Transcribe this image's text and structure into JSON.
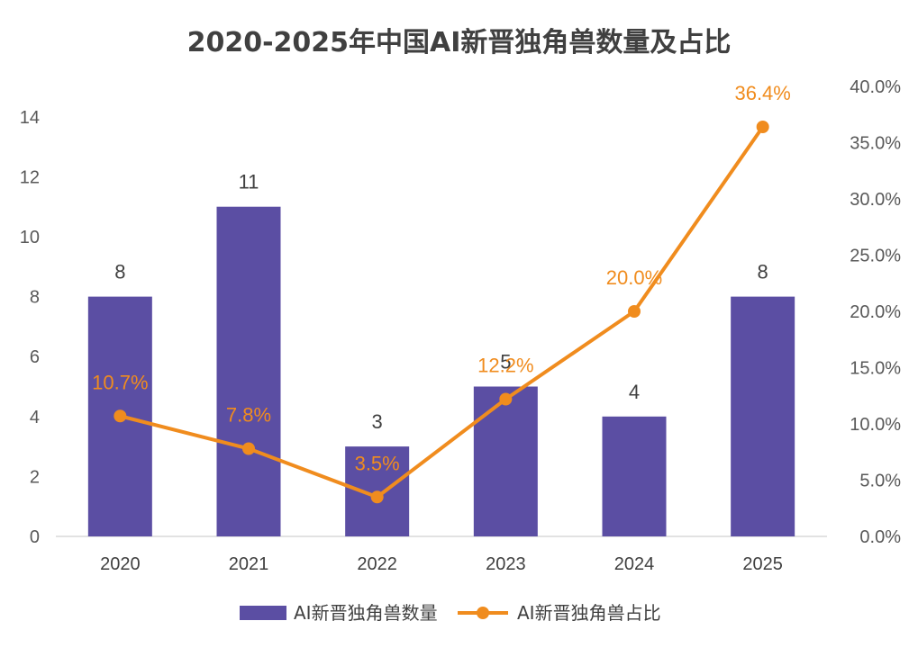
{
  "chart_data": {
    "type": "bar",
    "title": "2020-2025年中国AI新晋独角兽数量及占比",
    "categories": [
      "2020",
      "2021",
      "2022",
      "2023",
      "2024",
      "2025"
    ],
    "series": [
      {
        "name": "AI新晋独角兽数量",
        "type": "bar",
        "axis": "left",
        "values": [
          8,
          11,
          3,
          5,
          4,
          8
        ],
        "labels": [
          "8",
          "11",
          "3",
          "5",
          "4",
          "8"
        ],
        "color": "#5b4ea3"
      },
      {
        "name": "AI新晋独角兽占比",
        "type": "line",
        "axis": "right",
        "values": [
          10.7,
          7.8,
          3.5,
          12.2,
          20.0,
          36.4
        ],
        "labels": [
          "10.7%",
          "7.8%",
          "3.5%",
          "12.2%",
          "20.0%",
          "36.4%"
        ],
        "color": "#f08c1e"
      }
    ],
    "y_left": {
      "min": 0,
      "max": 15,
      "ticks": [
        "0",
        "2",
        "4",
        "6",
        "8",
        "10",
        "12",
        "14"
      ]
    },
    "y_right": {
      "min": 0,
      "max": 40,
      "ticks": [
        "0.0%",
        "5.0%",
        "10.0%",
        "15.0%",
        "20.0%",
        "25.0%",
        "30.0%",
        "35.0%",
        "40.0%"
      ]
    },
    "legend_position": "bottom"
  }
}
